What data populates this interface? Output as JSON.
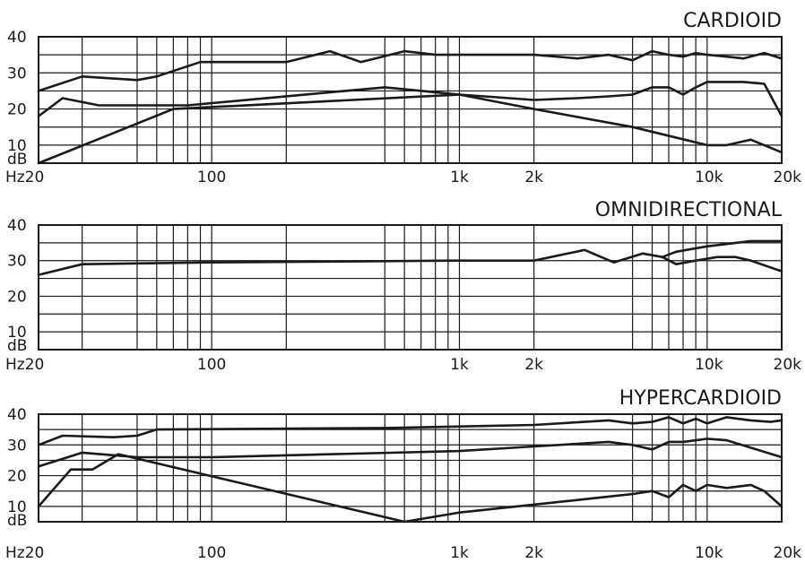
{
  "chart_data": [
    {
      "type": "line",
      "title": "CARDIOID",
      "x_scale": "log",
      "xlim": [
        20,
        20000
      ],
      "ylim": [
        5,
        40
      ],
      "grid": true,
      "y_tick_labels": [
        "40",
        "30",
        "20",
        "10",
        "dB"
      ],
      "x_tick_labels": [
        "Hz20",
        "100",
        "1k",
        "2k",
        "10k",
        "20k"
      ],
      "series": [
        {
          "x": [
            20,
            30,
            50,
            60,
            90,
            200,
            300,
            400,
            600,
            800,
            1000,
            2000,
            3000,
            4000,
            5000,
            6000,
            7000,
            8000,
            9000,
            10000,
            12000,
            14000,
            17000,
            20000
          ],
          "y": [
            25,
            29,
            28,
            29,
            33,
            33,
            36,
            33,
            36,
            35,
            35,
            35,
            34,
            35,
            33.5,
            36,
            35,
            34.5,
            35.5,
            35,
            34.5,
            34,
            35.5,
            34
          ]
        },
        {
          "x": [
            20,
            25,
            35,
            50,
            80,
            500,
            1000,
            2000,
            3000,
            4000,
            5000,
            6000,
            7000,
            8000,
            9000,
            10000,
            12000,
            14000,
            17000,
            20000
          ],
          "y": [
            18,
            23,
            21,
            21,
            21,
            26,
            24,
            22.5,
            23,
            23.5,
            24,
            26,
            26,
            24,
            26,
            27.5,
            27.5,
            27.5,
            27,
            18
          ]
        },
        {
          "x": [
            20,
            70,
            1000,
            2000,
            5000,
            10000,
            12000,
            15000,
            20000
          ],
          "y": [
            5,
            20,
            24,
            20,
            15,
            10,
            10,
            11.5,
            8
          ]
        }
      ]
    },
    {
      "type": "line",
      "title": "OMNIDIRECTIONAL",
      "x_scale": "log",
      "xlim": [
        20,
        20000
      ],
      "ylim": [
        5,
        40
      ],
      "grid": true,
      "y_tick_labels": [
        "40",
        "30",
        "20",
        "10",
        "dB"
      ],
      "x_tick_labels": [
        "Hz20",
        "100",
        "1k",
        "2k",
        "10k",
        "20k"
      ],
      "series": [
        {
          "x": [
            20,
            30,
            100,
            1000,
            2000,
            3200,
            4200,
            5500,
            6600,
            7500,
            10000,
            15000,
            20000
          ],
          "y": [
            26,
            29,
            29.5,
            30,
            30,
            33,
            29.5,
            32,
            31,
            32.5,
            34,
            35.5,
            35.5
          ]
        },
        {
          "x": [
            6600,
            7500,
            9000,
            11000,
            13000,
            15000,
            20000
          ],
          "y": [
            31,
            29,
            30,
            31,
            31,
            30,
            27
          ]
        }
      ]
    },
    {
      "type": "line",
      "title": "HYPERCARDIOID",
      "x_scale": "log",
      "xlim": [
        20,
        20000
      ],
      "ylim": [
        5,
        40
      ],
      "grid": true,
      "y_tick_labels": [
        "40",
        "30",
        "20",
        "10",
        "dB"
      ],
      "x_tick_labels": [
        "Hz20",
        "100",
        "1k",
        "2k",
        "10k",
        "20k"
      ],
      "series": [
        {
          "x": [
            20,
            25,
            40,
            50,
            60,
            500,
            2000,
            4000,
            5000,
            6000,
            7000,
            8000,
            9000,
            10000,
            12000,
            15000,
            18000,
            20000
          ],
          "y": [
            30,
            33,
            32.5,
            33,
            35,
            35.5,
            36.5,
            38,
            37,
            37.5,
            39,
            37,
            38.5,
            37,
            39,
            38,
            37.5,
            38
          ]
        },
        {
          "x": [
            20,
            30,
            50,
            100,
            1000,
            2000,
            4000,
            5000,
            6000,
            7000,
            8000,
            10000,
            12000,
            20000
          ],
          "y": [
            23,
            27.5,
            26,
            26,
            28,
            29.5,
            31,
            30,
            28.5,
            31,
            31,
            32,
            31.5,
            26
          ]
        },
        {
          "x": [
            20,
            27,
            33,
            42,
            600,
            1000,
            5000,
            6000,
            7000,
            8000,
            9000,
            10000,
            12000,
            15000,
            17000,
            20000
          ],
          "y": [
            10,
            22,
            22,
            27,
            4,
            8,
            14,
            15,
            13,
            17,
            15,
            17,
            16,
            17,
            15,
            10
          ]
        }
      ]
    }
  ]
}
